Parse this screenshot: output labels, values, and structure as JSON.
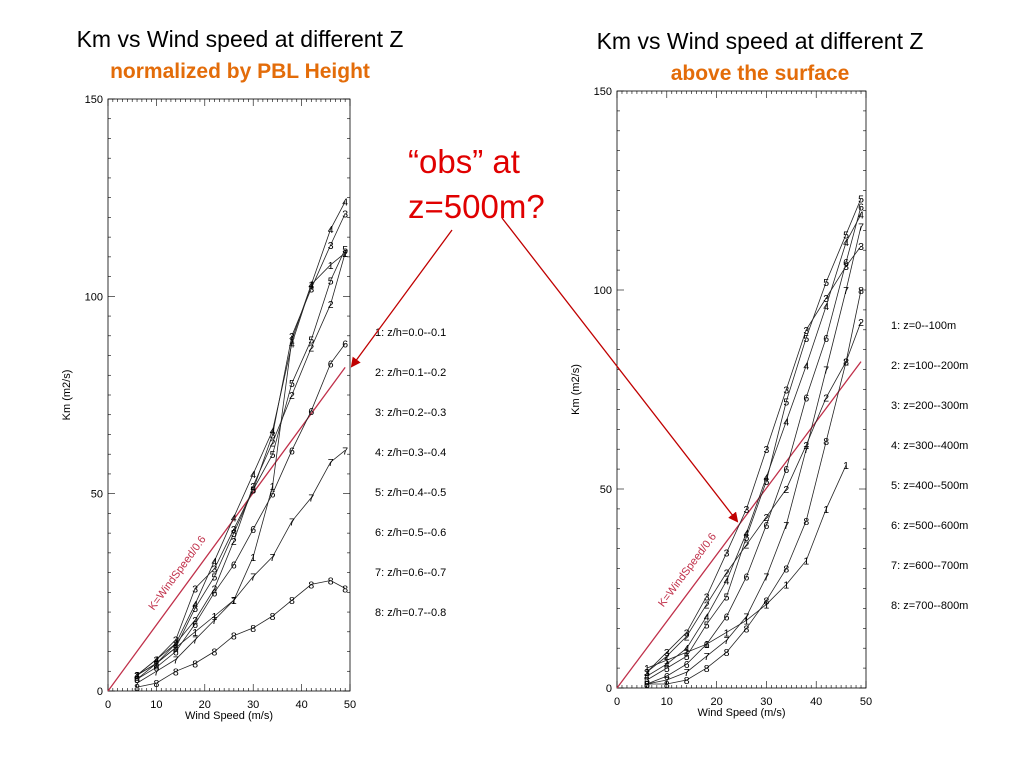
{
  "left_title": "Km vs Wind speed at different Z",
  "left_subtitle": "normalized by PBL Height",
  "right_title": "Km vs Wind speed at different Z",
  "right_subtitle": "above the surface",
  "callout": {
    "line1": "“obs” at",
    "line2": "z=500m?",
    "color": "#e00000"
  },
  "chart_data": [
    {
      "type": "line",
      "title": "Km vs Wind speed at different Z",
      "subtitle": "normalized by PBL Height",
      "xlabel": "Wind Speed (m/s)",
      "ylabel": "Km (m2/s)",
      "xlim": [
        0,
        50
      ],
      "ylim": [
        0,
        150
      ],
      "xticks": [
        "0",
        "10",
        "20",
        "30",
        "40",
        "50"
      ],
      "yticks": [
        "0",
        "50",
        "100",
        "150"
      ],
      "legend": [
        "1: z/h=0.0--0.1",
        "2: z/h=0.1--0.2",
        "3: z/h=0.2--0.3",
        "4: z/h=0.3--0.4",
        "5: z/h=0.4--0.5",
        "6: z/h=0.5--0.6",
        "7: z/h=0.6--0.7",
        "8: z/h=0.7--0.8"
      ],
      "legend_position": "right",
      "reference_line": {
        "label": "K=WindSpeed/0.6",
        "x": [
          0,
          49
        ],
        "y": [
          0,
          82
        ],
        "color": "#c0304a"
      },
      "series": [
        {
          "name": "1",
          "x": [
            6,
            10,
            14,
            18,
            22,
            26,
            30,
            34,
            38,
            42,
            46,
            49
          ],
          "y": [
            4,
            7,
            11,
            15,
            19,
            23,
            34,
            52,
            89,
            103,
            108,
            111
          ]
        },
        {
          "name": "2",
          "x": [
            6,
            10,
            14,
            18,
            22,
            26,
            30,
            34,
            38,
            42,
            46,
            49
          ],
          "y": [
            4,
            7,
            12,
            18,
            26,
            38,
            52,
            63,
            75,
            87,
            98,
            111
          ]
        },
        {
          "name": "3",
          "x": [
            6,
            10,
            14,
            18,
            22,
            26,
            30,
            34,
            38,
            42,
            46,
            49
          ],
          "y": [
            4,
            8,
            13,
            26,
            31,
            41,
            51,
            65,
            90,
            102,
            113,
            121
          ]
        },
        {
          "name": "4",
          "x": [
            6,
            10,
            14,
            18,
            22,
            26,
            30,
            34,
            38,
            42,
            46,
            49
          ],
          "y": [
            4,
            8,
            12,
            22,
            33,
            44,
            55,
            66,
            88,
            103,
            117,
            124
          ]
        },
        {
          "name": "5",
          "x": [
            6,
            10,
            14,
            18,
            22,
            26,
            30,
            34,
            38,
            42,
            46,
            49
          ],
          "y": [
            3,
            7,
            11,
            21,
            29,
            40,
            51,
            60,
            78,
            89,
            104,
            112
          ]
        },
        {
          "name": "6",
          "x": [
            6,
            10,
            14,
            18,
            22,
            26,
            30,
            34,
            38,
            42,
            46,
            49
          ],
          "y": [
            3,
            6,
            10,
            17,
            25,
            32,
            41,
            50,
            61,
            71,
            83,
            88
          ]
        },
        {
          "name": "7",
          "x": [
            6,
            10,
            14,
            18,
            22,
            26,
            30,
            34,
            38,
            42,
            46,
            49
          ],
          "y": [
            2,
            5,
            8,
            13,
            18,
            23,
            29,
            34,
            43,
            49,
            58,
            61
          ]
        },
        {
          "name": "8",
          "x": [
            6,
            10,
            14,
            18,
            22,
            26,
            30,
            34,
            38,
            42,
            46,
            49
          ],
          "y": [
            1,
            2,
            5,
            7,
            10,
            14,
            16,
            19,
            23,
            27,
            28,
            26
          ]
        }
      ]
    },
    {
      "type": "line",
      "title": "Km vs Wind speed at different Z",
      "subtitle": "above the surface",
      "xlabel": "Wind Speed (m/s)",
      "ylabel": "Km (m2/s)",
      "xlim": [
        0,
        50
      ],
      "ylim": [
        0,
        150
      ],
      "xticks": [
        "0",
        "10",
        "20",
        "30",
        "40",
        "50"
      ],
      "yticks": [
        "0",
        "50",
        "100",
        "150"
      ],
      "legend": [
        "1: z=0--100m",
        "2: z=100--200m",
        "3: z=200--300m",
        "4: z=300--400m",
        "5: z=400--500m",
        "6: z=500--600m",
        "7: z=600--700m",
        "8: z=700--800m"
      ],
      "legend_position": "right",
      "reference_line": {
        "label": "K=WindSpeed/0.6",
        "x": [
          0,
          49
        ],
        "y": [
          0,
          82
        ],
        "color": "#c0304a"
      },
      "series": [
        {
          "name": "1",
          "x": [
            6,
            10,
            14,
            18,
            22,
            26,
            30,
            34,
            38,
            42,
            46
          ],
          "y": [
            5,
            7,
            9,
            11,
            14,
            17,
            21,
            26,
            32,
            45,
            56
          ]
        },
        {
          "name": "2",
          "x": [
            6,
            10,
            14,
            18,
            22,
            26,
            30,
            34,
            38,
            42,
            46,
            49
          ],
          "y": [
            4,
            8,
            13,
            21,
            29,
            36,
            43,
            50,
            61,
            73,
            82,
            92
          ]
        },
        {
          "name": "3",
          "x": [
            6,
            10,
            14,
            18,
            22,
            26,
            30,
            34,
            38,
            42,
            46,
            49
          ],
          "y": [
            4,
            9,
            14,
            23,
            34,
            45,
            60,
            75,
            90,
            98,
            106,
            111
          ]
        },
        {
          "name": "4",
          "x": [
            6,
            10,
            14,
            18,
            22,
            26,
            30,
            34,
            38,
            42,
            46,
            49
          ],
          "y": [
            3,
            6,
            10,
            18,
            27,
            39,
            53,
            67,
            81,
            96,
            112,
            119
          ]
        },
        {
          "name": "5",
          "x": [
            6,
            10,
            14,
            18,
            22,
            26,
            30,
            34,
            38,
            42,
            46,
            49
          ],
          "y": [
            2,
            5,
            8,
            16,
            23,
            38,
            52,
            72,
            88,
            102,
            114,
            123
          ]
        },
        {
          "name": "6",
          "x": [
            6,
            10,
            14,
            18,
            22,
            26,
            30,
            34,
            38,
            42,
            46,
            49
          ],
          "y": [
            1,
            3,
            6,
            11,
            18,
            28,
            41,
            55,
            73,
            88,
            107,
            121
          ]
        },
        {
          "name": "7",
          "x": [
            6,
            10,
            14,
            18,
            22,
            26,
            30,
            34,
            38,
            42,
            46,
            49
          ],
          "y": [
            1,
            2,
            4,
            8,
            12,
            18,
            28,
            41,
            60,
            80,
            100,
            116
          ]
        },
        {
          "name": "8",
          "x": [
            6,
            10,
            14,
            18,
            22,
            26,
            30,
            34,
            38,
            42,
            46,
            49
          ],
          "y": [
            1,
            1,
            2,
            5,
            9,
            15,
            22,
            30,
            42,
            62,
            82,
            100
          ]
        }
      ]
    }
  ]
}
